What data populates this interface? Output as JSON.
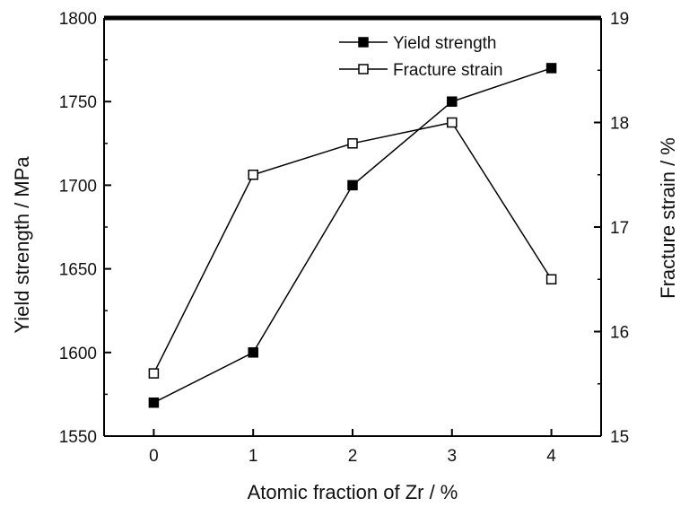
{
  "chart_data": {
    "type": "line",
    "title": "",
    "xlabel": "Atomic fraction of Zr / %",
    "ylabel_left": "Yield strength / MPa",
    "ylabel_right": "Fracture strain / %",
    "x": [
      0,
      1,
      2,
      3,
      4
    ],
    "x_ticks": [
      "0",
      "1",
      "2",
      "3",
      "4"
    ],
    "xlim": [
      -0.5,
      4.5
    ],
    "ylim_left": [
      1550,
      1800
    ],
    "ylim_right": [
      15,
      19
    ],
    "y_ticks_left": [
      "1550",
      "1600",
      "1650",
      "1700",
      "1750",
      "1800"
    ],
    "y_ticks_right": [
      "15",
      "16",
      "17",
      "18",
      "19"
    ],
    "grid": false,
    "legend_position": "top-right",
    "series": [
      {
        "name": "Yield strength",
        "axis": "left",
        "marker": "filled-square",
        "color": "#000000",
        "values": [
          1570,
          1600,
          1700,
          1750,
          1770
        ]
      },
      {
        "name": "Fracture strain",
        "axis": "right",
        "marker": "open-square",
        "color": "#000000",
        "values": [
          15.6,
          17.5,
          17.8,
          18.0,
          16.5
        ]
      }
    ]
  }
}
